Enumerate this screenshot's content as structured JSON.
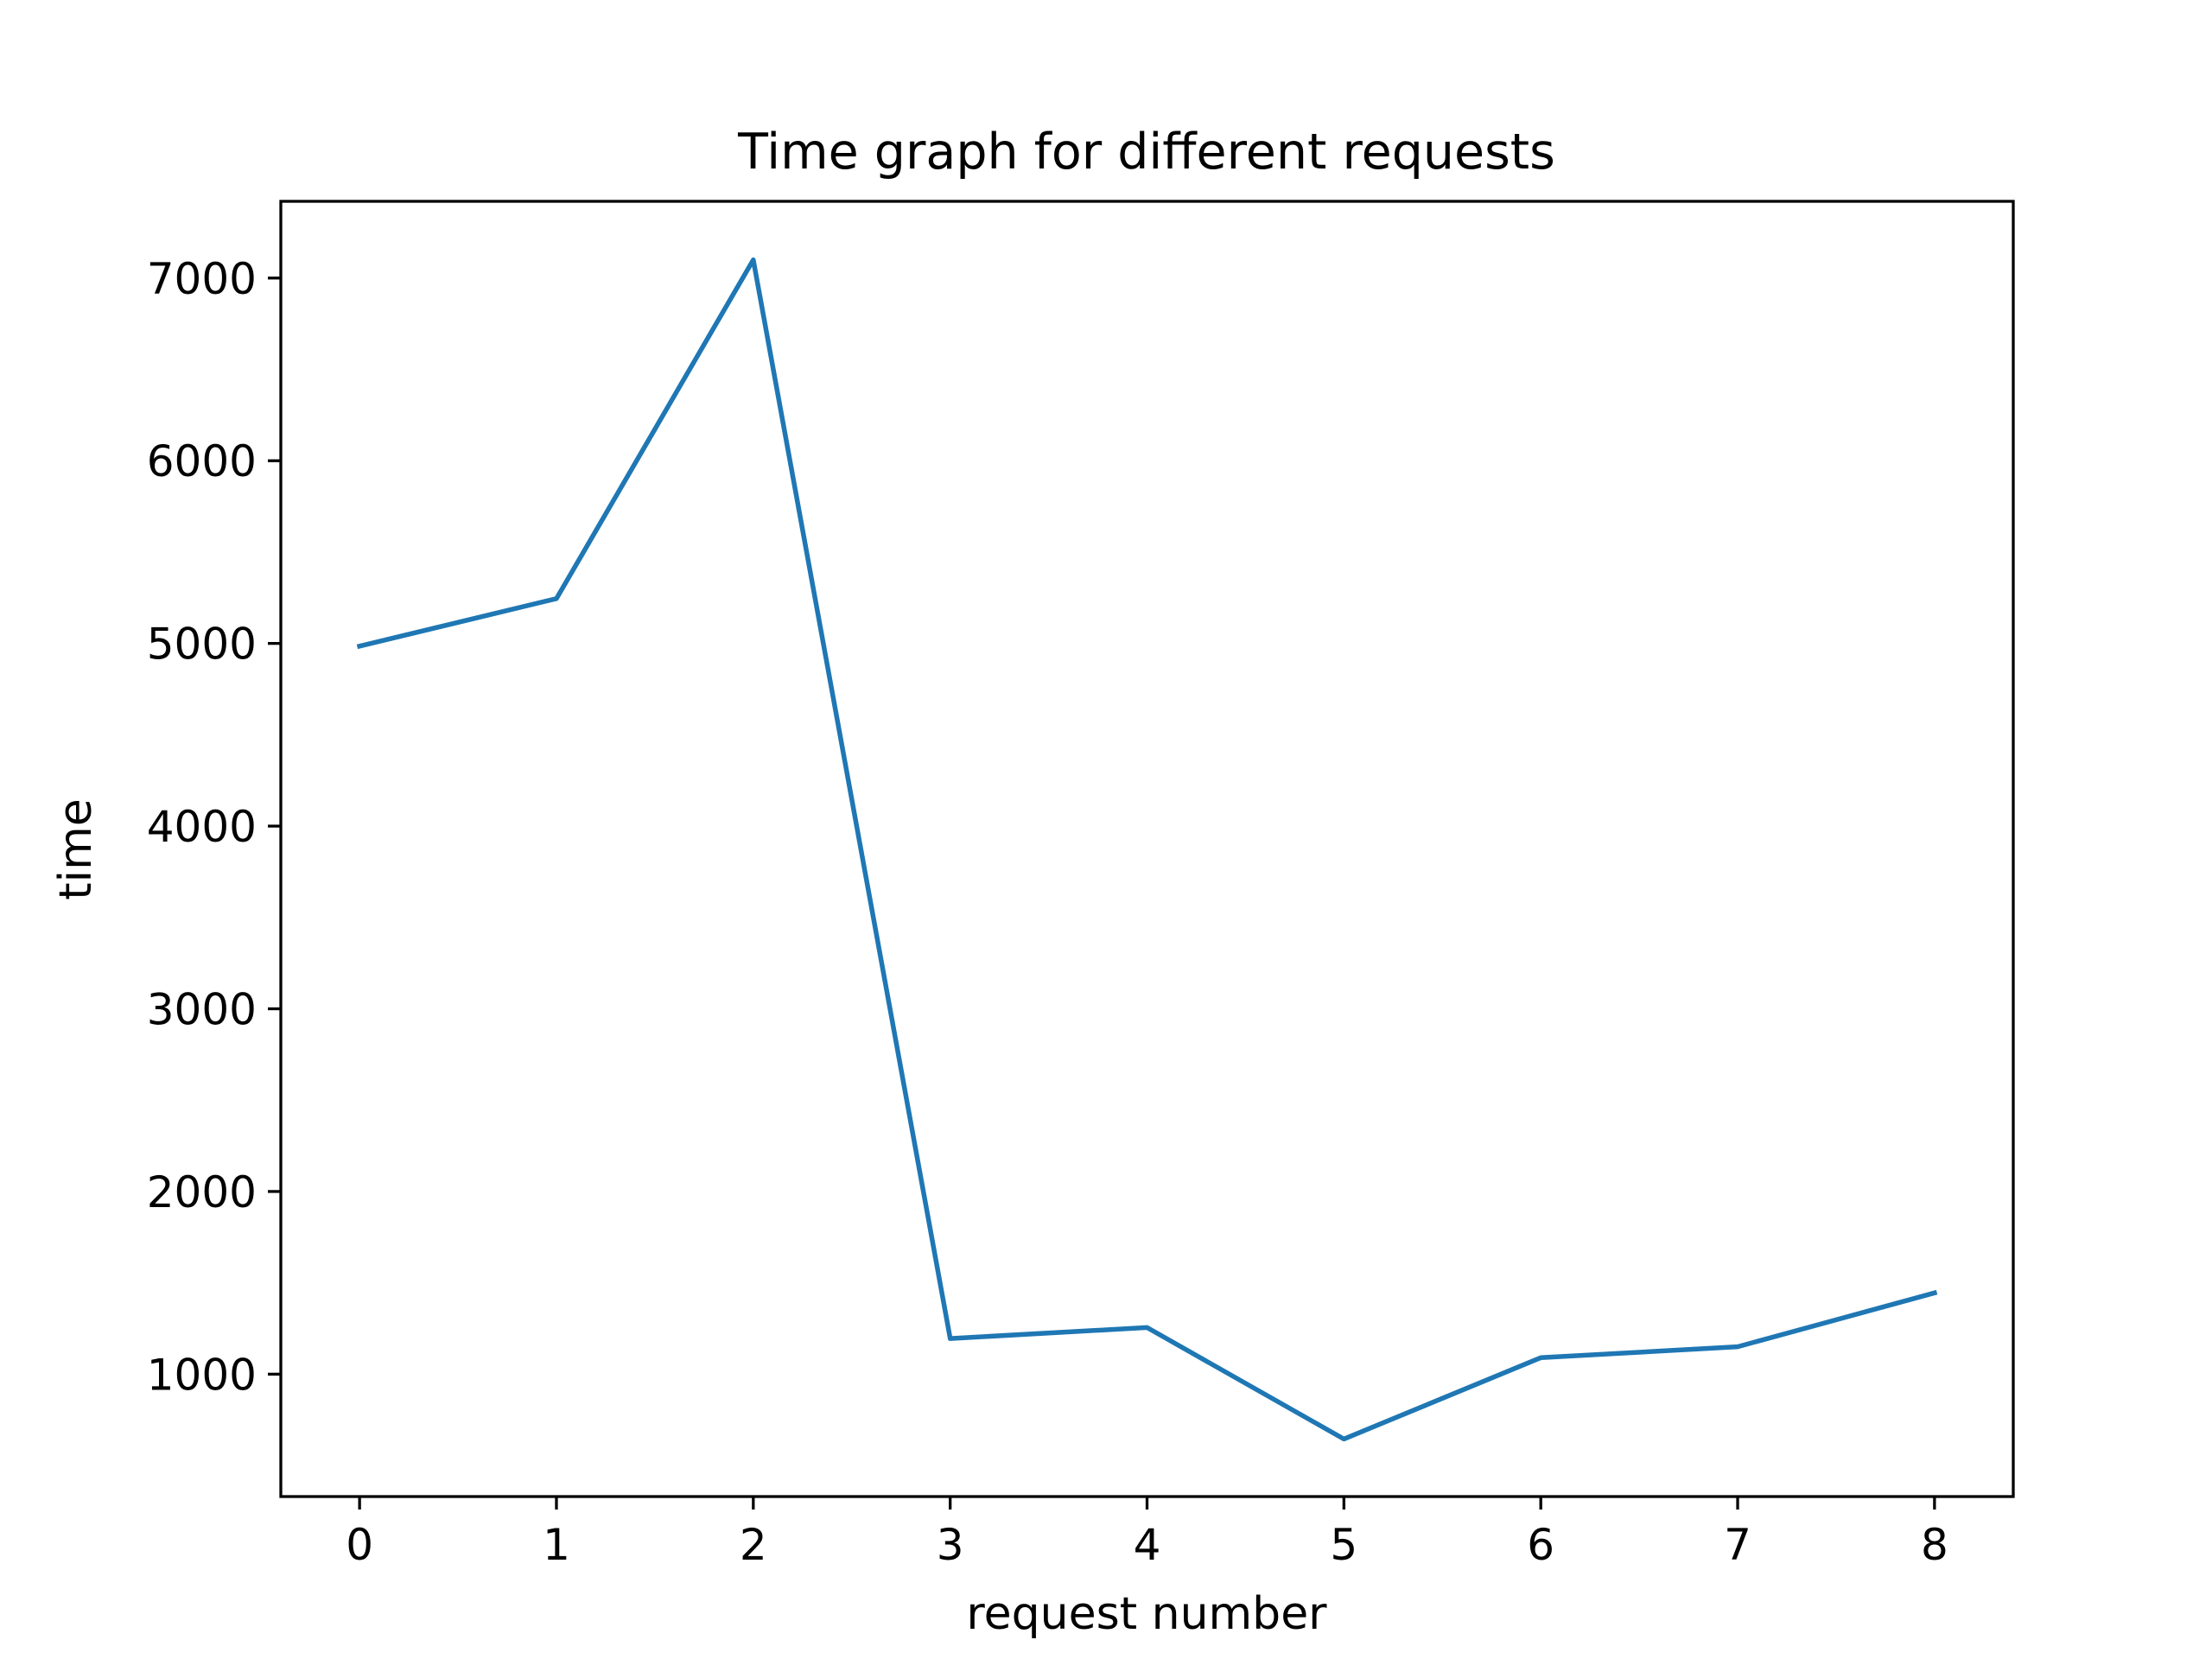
{
  "chart_data": {
    "type": "line",
    "title": "Time graph for different requests",
    "xlabel": "request number",
    "ylabel": "time",
    "x": [
      0,
      1,
      2,
      3,
      4,
      5,
      6,
      7,
      8
    ],
    "series": [
      {
        "values": [
          4985,
          5245,
          7100,
          1195,
          1255,
          645,
          1090,
          1150,
          1445
        ],
        "color": "#1f77b4"
      }
    ],
    "xticks": [
      0,
      1,
      2,
      3,
      4,
      5,
      6,
      7,
      8
    ],
    "yticks": [
      1000,
      2000,
      3000,
      4000,
      5000,
      6000,
      7000
    ],
    "xlim": [
      -0.4,
      8.4
    ],
    "ylim": [
      330,
      7420
    ],
    "grid": false,
    "legend": "none"
  }
}
